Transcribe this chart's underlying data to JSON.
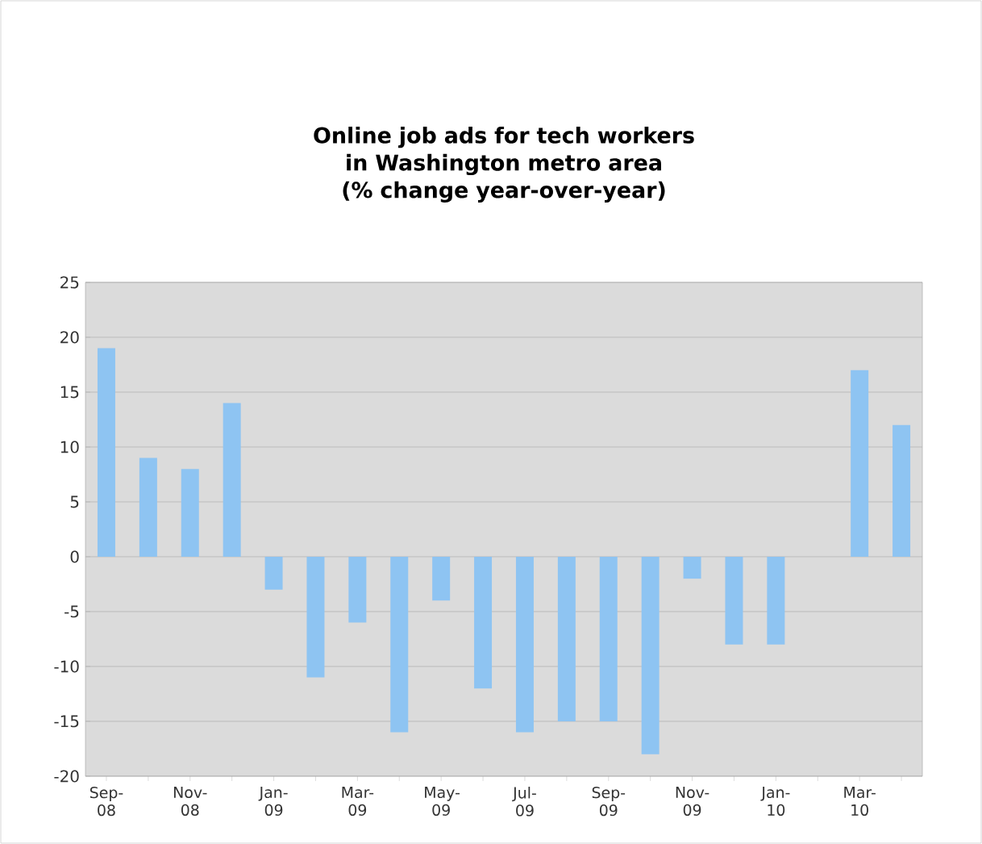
{
  "chart_data": {
    "type": "bar",
    "title": "Online job ads for tech workers in Washington metro area (% change year-over-year)",
    "categories": [
      "Sep-08",
      null,
      "Nov-08",
      null,
      "Jan-09",
      null,
      "Mar-09",
      null,
      "May-09",
      null,
      "Jul-09",
      null,
      "Sep-09",
      null,
      "Nov-09",
      null,
      "Jan-10",
      null,
      "Mar-10",
      null
    ],
    "values": [
      19,
      9,
      8,
      14,
      -3,
      -11,
      -6,
      -16,
      -4,
      -12,
      -16,
      -15,
      -15,
      -18,
      -2,
      -8,
      -8,
      null,
      17,
      12
    ],
    "color": "#8ec4f2",
    "ylim": [
      -20,
      25
    ],
    "yticks": [
      -20,
      -15,
      -10,
      -5,
      0,
      5,
      10,
      15,
      20,
      25
    ],
    "grid": "y"
  }
}
